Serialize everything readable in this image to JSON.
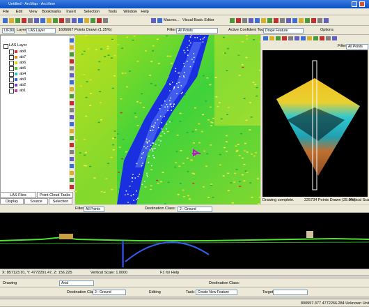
{
  "title": "Untitled - ArcMap - ArcView",
  "menu": [
    "File",
    "Edit",
    "View",
    "Bookmarks",
    "Insert",
    "Selection",
    "Tools",
    "Window",
    "Help"
  ],
  "toolbar": {
    "macros": "Macros...",
    "vba": "Visual Basic Editor"
  },
  "las_toolbar": {
    "name": "LIF360",
    "layer_label": "Layer:",
    "layer": "LAS Layer",
    "points": "1606667 Points Drawn (1.25%)",
    "filter_label": "Filter:",
    "filter": "All Points",
    "tool_label": "Active Confident Tool:",
    "tool": "Drape Feature",
    "options": "Options"
  },
  "toc": {
    "root": "LAS Layer",
    "layers": [
      "ab8",
      "ab7",
      "ab6",
      "ab5",
      "ab4",
      "ab3",
      "ab2",
      "ab1"
    ],
    "tabs": [
      "LAS Files",
      "Point Cloud Tasks",
      "Display",
      "Source",
      "Selection"
    ]
  },
  "view3d": {
    "filter_label": "Filter:",
    "filter": "All Points",
    "status": "Drawing complete.",
    "points": "225734 Points Drawn (25.0%)",
    "scale": "Vertical Scale"
  },
  "profile": {
    "filter_label": "Filter:",
    "filter": "All Points",
    "dest_label": "Destination Class:",
    "dest": "2 : Ground",
    "coords": "X: 857123.91, Y: 4772291.47, Z: 156.225",
    "scale": "Vertical Scale: 1.0000",
    "help": "F1 for Help"
  },
  "drawing": {
    "label": "Drawing",
    "font": "Arial",
    "dest_label": "Destination Class:",
    "dest": "2 : Ground"
  },
  "editor": {
    "label": "Editing",
    "task_label": "Task:",
    "task": "Create New Feature",
    "target_label": "Target:"
  },
  "status": "800957.377 4772266.284 Unknown Units"
}
